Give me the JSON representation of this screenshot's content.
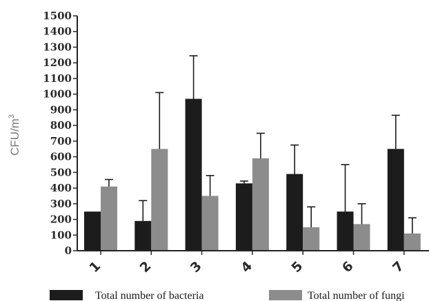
{
  "chart_data": {
    "type": "bar",
    "title": "",
    "xlabel": "",
    "ylabel": "CFU/m",
    "ylabel_superscript": "3",
    "ylim": [
      0,
      1500
    ],
    "yticks": [
      0,
      100,
      200,
      300,
      400,
      500,
      600,
      700,
      800,
      900,
      1000,
      1100,
      1200,
      1300,
      1400,
      1500
    ],
    "categories": [
      "1",
      "2",
      "3",
      "4",
      "5",
      "6",
      "7"
    ],
    "series": [
      {
        "name": "Total number of bacteria",
        "color": "#1c1c1c",
        "values": [
          250,
          190,
          970,
          430,
          490,
          250,
          650
        ],
        "error_upper": [
          0,
          130,
          275,
          15,
          185,
          300,
          215
        ]
      },
      {
        "name": "Total number of fungi",
        "color": "#8c8c8c",
        "values": [
          410,
          650,
          350,
          590,
          150,
          170,
          110
        ],
        "error_upper": [
          45,
          360,
          130,
          160,
          130,
          130,
          100
        ]
      }
    ],
    "legend_position": "bottom",
    "grid": false
  }
}
